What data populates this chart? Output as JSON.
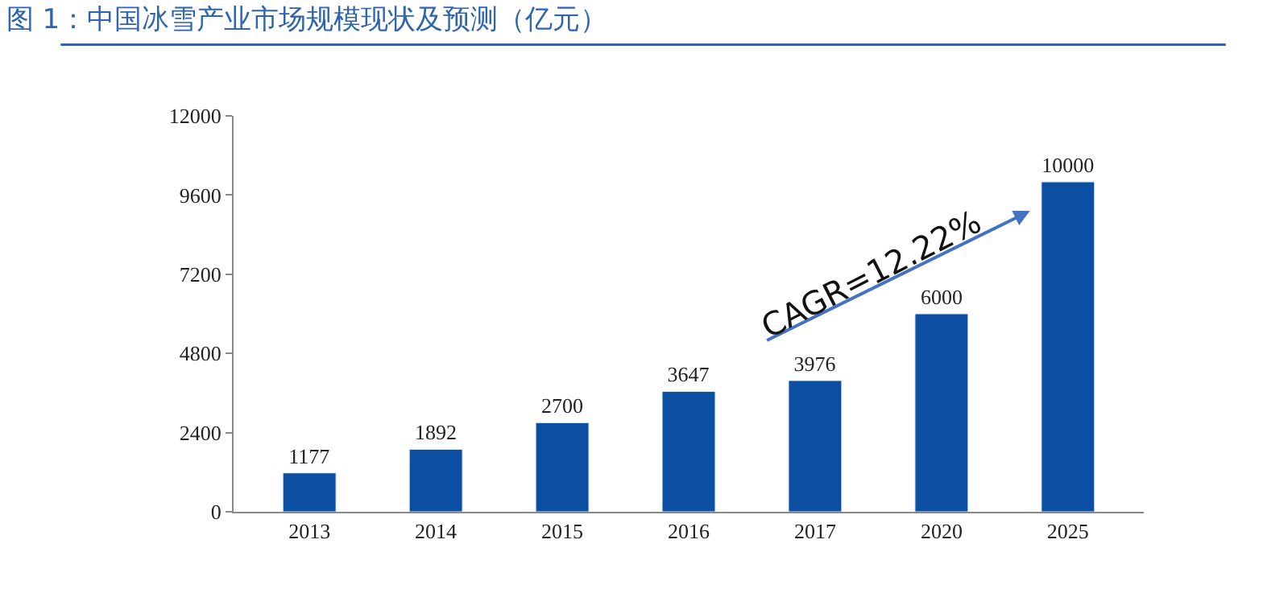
{
  "chart_data": {
    "type": "bar",
    "title": "图 1：中国冰雪产业市场规模现状及预测（亿元）",
    "categories": [
      "2013",
      "2014",
      "2015",
      "2016",
      "2017",
      "2020",
      "2025"
    ],
    "values": [
      1177,
      1892,
      2700,
      3647,
      3976,
      6000,
      10000
    ],
    "color": "#0b4ea2",
    "ylim": [
      0,
      12000
    ],
    "yticks": [
      0,
      2400,
      4800,
      7200,
      9600,
      12000
    ],
    "data_labels": true,
    "annotations": [
      "CAGR=12.22%"
    ]
  }
}
